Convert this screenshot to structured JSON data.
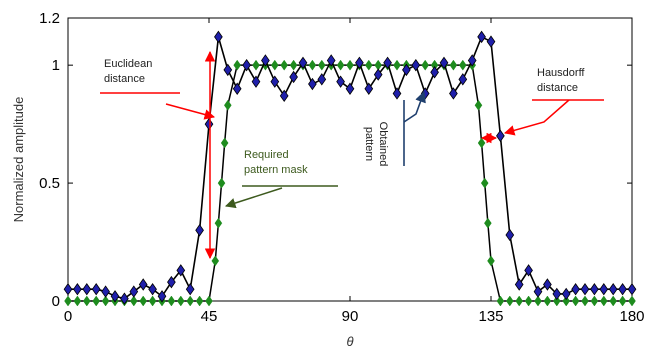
{
  "chart_data": {
    "type": "line",
    "xlabel": "θ",
    "ylabel": "Normalized amplitude",
    "xlim": [
      0,
      180
    ],
    "ylim": [
      0,
      1.2
    ],
    "xticks": [
      0,
      45,
      90,
      135,
      180
    ],
    "yticks": [
      0,
      0.5,
      1,
      1.2
    ],
    "xtick_labels": [
      "0",
      "45",
      "90",
      "135",
      "180"
    ],
    "ytick_labels": [
      "0",
      "0.5",
      "1",
      "1.2"
    ],
    "grid": false,
    "colors": {
      "obtained": "#1f1faa",
      "obtained_line": "#000000",
      "mask": "#1e8c1e",
      "arrow_red": "#ff0000",
      "arrow_green": "#3d5a1e",
      "arrow_blue": "#1f3f6e"
    },
    "series": [
      {
        "marker": "diamond",
        "x": [
          0,
          3,
          6,
          9,
          12,
          15,
          18,
          21,
          24,
          27,
          30,
          33,
          36,
          39,
          42,
          45,
          48,
          51,
          54,
          57,
          60,
          63,
          66,
          69,
          72,
          75,
          78,
          81,
          84,
          87,
          90,
          93,
          96,
          99,
          102,
          105,
          108,
          111,
          114,
          117,
          120,
          123,
          126,
          129,
          132,
          135,
          138,
          141,
          144,
          147,
          150,
          153,
          156,
          159,
          162,
          165,
          168,
          171,
          174,
          177,
          180
        ],
        "y": [
          0.05,
          0.05,
          0.05,
          0.05,
          0.04,
          0.02,
          0.01,
          0.04,
          0.07,
          0.05,
          0.02,
          0.08,
          0.13,
          0.05,
          0.3,
          0.75,
          1.12,
          0.98,
          0.9,
          1.0,
          0.93,
          1.02,
          0.93,
          0.87,
          0.95,
          1.01,
          0.92,
          0.94,
          1.02,
          0.93,
          0.9,
          1.01,
          0.9,
          0.96,
          1.01,
          0.88,
          0.98,
          1.0,
          0.88,
          0.97,
          1.01,
          0.88,
          0.94,
          1.02,
          1.12,
          1.1,
          0.7,
          0.28,
          0.07,
          0.13,
          0.04,
          0.07,
          0.03,
          0.03,
          0.05,
          0.05,
          0.05,
          0.05,
          0.05,
          0.05,
          0.05
        ]
      },
      {
        "marker": "diamond",
        "x": [
          0,
          3,
          6,
          9,
          12,
          15,
          18,
          21,
          24,
          27,
          30,
          33,
          36,
          39,
          42,
          45,
          47,
          48,
          49,
          50,
          51,
          54,
          57,
          60,
          63,
          66,
          69,
          72,
          75,
          78,
          81,
          84,
          87,
          90,
          93,
          96,
          99,
          102,
          105,
          108,
          111,
          114,
          117,
          120,
          123,
          126,
          129,
          131,
          132,
          133,
          134,
          135,
          138,
          141,
          144,
          147,
          150,
          153,
          156,
          159,
          162,
          165,
          168,
          171,
          174,
          177,
          180
        ],
        "y": [
          0,
          0,
          0,
          0,
          0,
          0,
          0,
          0,
          0,
          0,
          0,
          0,
          0,
          0,
          0,
          0,
          0.17,
          0.33,
          0.5,
          0.67,
          0.83,
          1,
          1,
          1,
          1,
          1,
          1,
          1,
          1,
          1,
          1,
          1,
          1,
          1,
          1,
          1,
          1,
          1,
          1,
          1,
          1,
          1,
          1,
          1,
          1,
          1,
          1,
          0.83,
          0.67,
          0.5,
          0.33,
          0.17,
          0,
          0,
          0,
          0,
          0,
          0,
          0,
          0,
          0,
          0,
          0,
          0,
          0,
          0,
          0
        ]
      }
    ],
    "annotations": [
      {
        "id": "euclidean",
        "lines": [
          "Euclidean",
          "distance"
        ]
      },
      {
        "id": "hausdorff",
        "lines": [
          "Hausdorff",
          "distance"
        ]
      },
      {
        "id": "mask",
        "lines": [
          "Required",
          "pattern mask"
        ]
      },
      {
        "id": "obtained",
        "lines": [
          "Obtained",
          "pattern"
        ]
      }
    ]
  }
}
